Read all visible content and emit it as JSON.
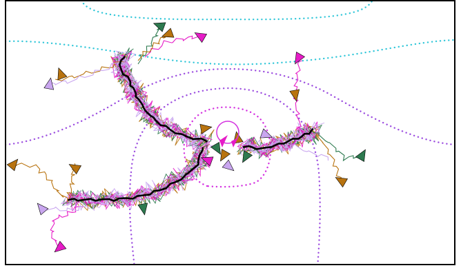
{
  "colors": {
    "background": "#ffffff",
    "frame": "#000000",
    "path": "#000000",
    "contour_cyan": "#33c7d9",
    "contour_violet": "#9d4fe0",
    "contour_magenta": "#d432e0",
    "agent_brown": "#b8730f",
    "agent_green": "#2d7a4f",
    "agent_magenta": "#e61cc7",
    "agent_lavender": "#c9a6ef"
  },
  "series_colors": [
    "#b8730f",
    "#2d7a4f",
    "#e61cc7",
    "#c9a6ef"
  ],
  "figure": {
    "type": "trajectory-field",
    "frame": true,
    "contour_style": "dotted",
    "agent_marker": "triangle"
  }
}
